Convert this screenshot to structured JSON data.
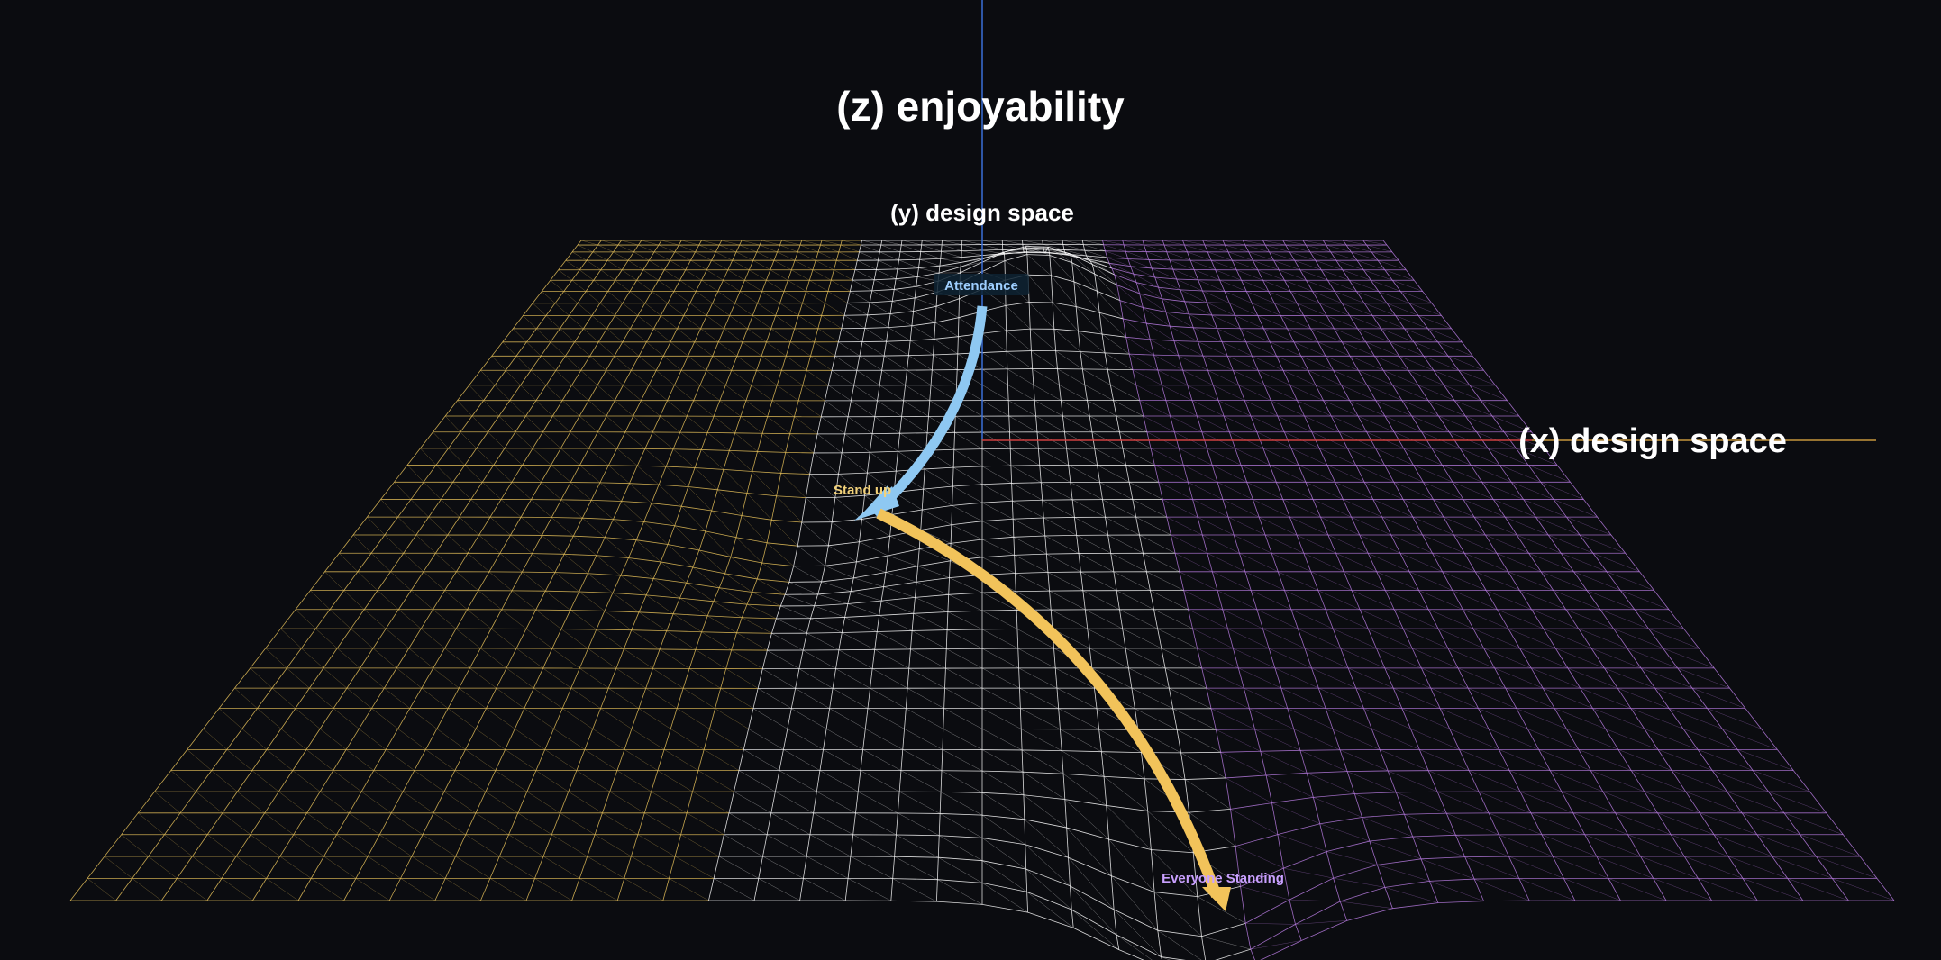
{
  "axes": {
    "z_label": "(z) enjoyability",
    "y_label": "(y) design space",
    "x_label": "(x) design space"
  },
  "points": [
    {
      "label": "Attendance",
      "color": "#9ecfff"
    },
    {
      "label": "Stand up",
      "color": "#f3d27a"
    },
    {
      "label": "Everyone Standing",
      "color": "#c9a0ff"
    }
  ],
  "colors": {
    "background": "#0b0c10",
    "mesh_left": "#e8c25a",
    "mesh_mid": "#ffffff",
    "mesh_right": "#b77be0",
    "arrow_blue": "#8ec8f2",
    "arrow_yellow": "#f2c35a",
    "z_axis": "#3b6fd8",
    "x_axis_red": "#d04040",
    "x_axis_orange": "#c8963c"
  }
}
